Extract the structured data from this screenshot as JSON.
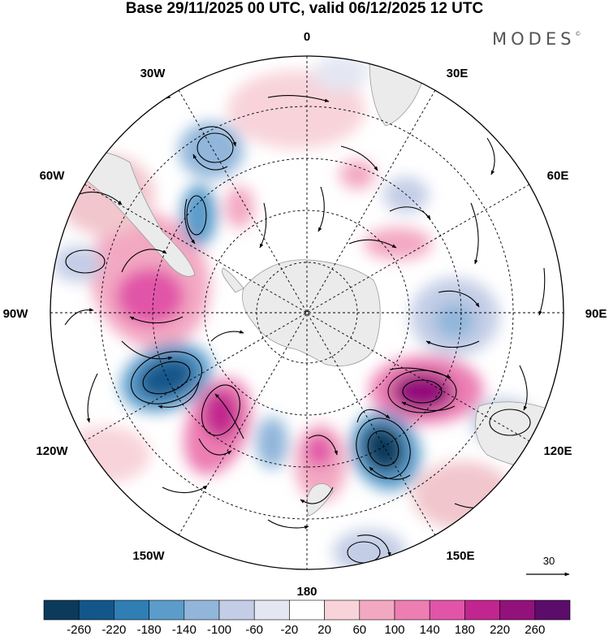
{
  "header": {
    "title": "Base 29/11/2025 00 UTC, valid 06/12/2025 12 UTC",
    "logo": "MODES",
    "logo_mark": "©"
  },
  "map": {
    "projection": "south-polar-stereographic",
    "longitude_labels": {
      "top": "0",
      "top_right": "30E",
      "right_upper": "60E",
      "right": "90E",
      "right_lower": "120E",
      "bottom_right": "150E",
      "bottom": "180",
      "bottom_left": "150W",
      "left_lower": "120W",
      "left": "90W",
      "left_upper": "60W",
      "top_left": "30W"
    },
    "vector_reference_value": "30",
    "colors": {
      "land": "#ebebeb",
      "graticule": "#000000",
      "positive": "#d6338f",
      "negative": "#1a5f8f"
    }
  },
  "colorbar": {
    "ticks": [
      "-260",
      "-220",
      "-180",
      "-140",
      "-100",
      "-60",
      "-20",
      "20",
      "60",
      "100",
      "140",
      "180",
      "220",
      "260"
    ],
    "colors": [
      "#0b3a5b",
      "#12568a",
      "#2f7fb5",
      "#5b9ccb",
      "#91b6da",
      "#c3cde6",
      "#e4e6f2",
      "#ffffff",
      "#f8d3da",
      "#f3a8c2",
      "#ec7eb2",
      "#e154a8",
      "#c1258f",
      "#93117a",
      "#5c0c6b"
    ]
  }
}
